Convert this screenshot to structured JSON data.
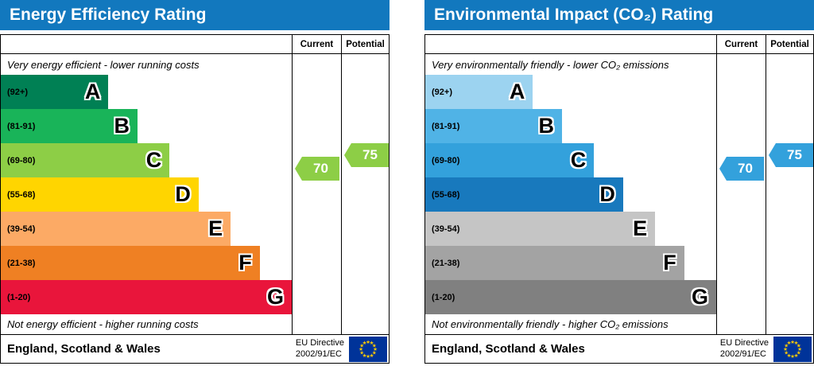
{
  "charts": [
    {
      "title": "Energy Efficiency Rating",
      "columns": {
        "current": "Current",
        "potential": "Potential"
      },
      "top_note": "Very energy efficient - lower running costs",
      "bottom_note": "Not energy efficient - higher running costs",
      "bands": [
        {
          "range": "(92+)",
          "letter": "A",
          "color": "#008054",
          "width_pct": 37
        },
        {
          "range": "(81-91)",
          "letter": "B",
          "color": "#19b459",
          "width_pct": 47
        },
        {
          "range": "(69-80)",
          "letter": "C",
          "color": "#8dce46",
          "width_pct": 58
        },
        {
          "range": "(55-68)",
          "letter": "D",
          "color": "#ffd500",
          "width_pct": 68
        },
        {
          "range": "(39-54)",
          "letter": "E",
          "color": "#fcaa65",
          "width_pct": 79
        },
        {
          "range": "(21-38)",
          "letter": "F",
          "color": "#ef8023",
          "width_pct": 89
        },
        {
          "range": "(1-20)",
          "letter": "G",
          "color": "#e9153b",
          "width_pct": 100
        }
      ],
      "current": {
        "value": "70",
        "color": "#8dce46"
      },
      "potential": {
        "value": "75",
        "color": "#8dce46"
      },
      "footer": {
        "region": "England, Scotland & Wales",
        "directive_line1": "EU Directive",
        "directive_line2": "2002/91/EC"
      }
    },
    {
      "title": "Environmental Impact (CO₂) Rating",
      "columns": {
        "current": "Current",
        "potential": "Potential"
      },
      "top_note": "Very environmentally friendly - lower CO₂ emissions",
      "bottom_note": "Not environmentally friendly - higher CO₂ emissions",
      "bands": [
        {
          "range": "(92+)",
          "letter": "A",
          "color": "#9cd3f0",
          "width_pct": 37
        },
        {
          "range": "(81-91)",
          "letter": "B",
          "color": "#50b3e6",
          "width_pct": 47
        },
        {
          "range": "(69-80)",
          "letter": "C",
          "color": "#33a1dc",
          "width_pct": 58
        },
        {
          "range": "(55-68)",
          "letter": "D",
          "color": "#1879bd",
          "width_pct": 68
        },
        {
          "range": "(39-54)",
          "letter": "E",
          "color": "#c5c5c5",
          "width_pct": 79
        },
        {
          "range": "(21-38)",
          "letter": "F",
          "color": "#a3a3a3",
          "width_pct": 89
        },
        {
          "range": "(1-20)",
          "letter": "G",
          "color": "#808080",
          "width_pct": 100
        }
      ],
      "current": {
        "value": "70",
        "color": "#33a1dc"
      },
      "potential": {
        "value": "75",
        "color": "#33a1dc"
      },
      "footer": {
        "region": "England, Scotland & Wales",
        "directive_line1": "EU Directive",
        "directive_line2": "2002/91/EC"
      }
    }
  ],
  "chart_data": [
    {
      "type": "bar",
      "title": "Energy Efficiency Rating",
      "categories": [
        "A",
        "B",
        "C",
        "D",
        "E",
        "F",
        "G"
      ],
      "band_ranges": [
        "92+",
        "81-91",
        "69-80",
        "55-68",
        "39-54",
        "21-38",
        "1-20"
      ],
      "band_widths_pct": [
        37,
        47,
        58,
        68,
        79,
        89,
        100
      ],
      "values": {
        "current": 70,
        "potential": 75
      },
      "current_band": "C",
      "potential_band": "C",
      "scale": [
        1,
        100
      ],
      "legend_position": "none",
      "annotations": [
        "Very energy efficient - lower running costs",
        "Not energy efficient - higher running costs"
      ]
    },
    {
      "type": "bar",
      "title": "Environmental Impact (CO₂) Rating",
      "categories": [
        "A",
        "B",
        "C",
        "D",
        "E",
        "F",
        "G"
      ],
      "band_ranges": [
        "92+",
        "81-91",
        "69-80",
        "55-68",
        "39-54",
        "21-38",
        "1-20"
      ],
      "band_widths_pct": [
        37,
        47,
        58,
        68,
        79,
        89,
        100
      ],
      "values": {
        "current": 70,
        "potential": 75
      },
      "current_band": "C",
      "potential_band": "C",
      "scale": [
        1,
        100
      ],
      "legend_position": "none",
      "annotations": [
        "Very environmentally friendly - lower CO₂ emissions",
        "Not environmentally friendly - higher CO₂ emissions"
      ]
    }
  ]
}
